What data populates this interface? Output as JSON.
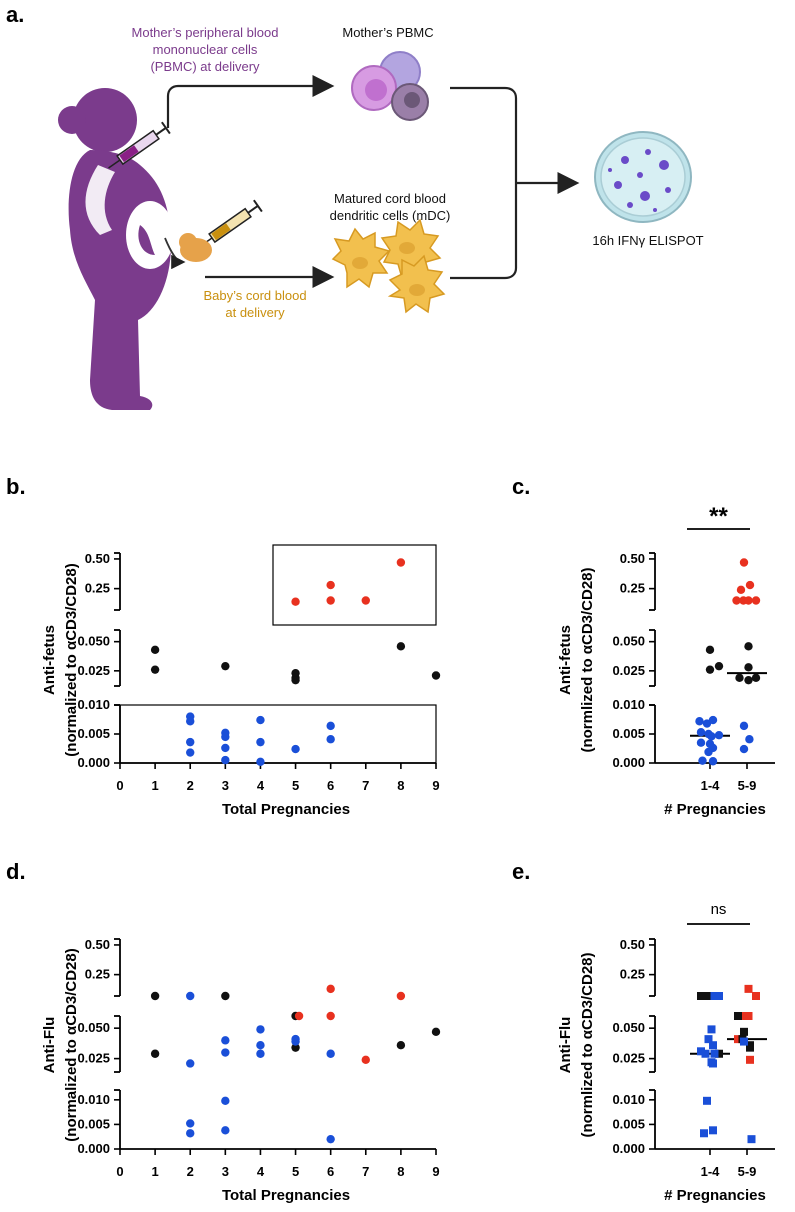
{
  "colors": {
    "purple": "#7b3b8c",
    "gold": "#d4a017",
    "black": "#111111",
    "blue": "#1a4fd8",
    "red": "#e8311f",
    "dc": "#f2c04e",
    "dish": "#bfe3ea"
  },
  "panels": {
    "a": "a.",
    "b": "b.",
    "c": "c.",
    "d": "d.",
    "e": "e."
  },
  "diagram": {
    "mother_label_1": "Mother’s peripheral blood",
    "mother_label_2": "mononuclear cells",
    "mother_label_3": "(PBMC) at delivery",
    "pbmc_label": "Mother’s PBMC",
    "mdc_label_1": "Matured cord blood",
    "mdc_label_2": "dendritic cells (mDC)",
    "baby_label_1": "Baby’s cord blood",
    "baby_label_2": "at delivery",
    "elispot_label": "16h IFNγ ELISPOT",
    "icons": [
      "pregnant-woman-icon",
      "syringe-icon",
      "fetus-icon",
      "pbmc-cells-icon",
      "dendritic-cells-icon",
      "petri-dish-icon"
    ]
  },
  "chart_data": [
    {
      "id": "b",
      "type": "scatter",
      "xlabel": "Total Pregnancies",
      "ylabel_1": "Anti-fetus",
      "ylabel_2": "(normalized to αCD3/CD28)",
      "xlim": [
        0,
        9
      ],
      "x_ticks": [
        "0",
        "1",
        "2",
        "3",
        "4",
        "5",
        "6",
        "7",
        "8",
        "9"
      ],
      "y_axis_segments": [
        {
          "range": [
            0,
            0.01
          ],
          "ticks": [
            "0.000",
            "0.005",
            "0.010"
          ]
        },
        {
          "range": [
            0.012,
            0.06
          ],
          "ticks": [
            "0.025",
            "0.050"
          ]
        },
        {
          "range": [
            0.07,
            0.55
          ],
          "ticks": [
            "0.25",
            "0.50"
          ]
        }
      ],
      "series": [
        {
          "name": "black",
          "color": "black",
          "points": [
            [
              1,
              0.043
            ],
            [
              1,
              0.026
            ],
            [
              3,
              0.029
            ],
            [
              5,
              0.023
            ],
            [
              5,
              0.019
            ],
            [
              5,
              0.017
            ],
            [
              8,
              0.046
            ],
            [
              9,
              0.021
            ]
          ]
        },
        {
          "name": "blue",
          "color": "blue",
          "points": [
            [
              2,
              0.008
            ],
            [
              2,
              0.0072
            ],
            [
              2,
              0.0036
            ],
            [
              2,
              0.0018
            ],
            [
              3,
              0.0052
            ],
            [
              3,
              0.0045
            ],
            [
              3,
              0.0026
            ],
            [
              3,
              0.0005
            ],
            [
              4,
              0.0074
            ],
            [
              4,
              0.0036
            ],
            [
              4,
              0.0002
            ],
            [
              5,
              0.0024
            ],
            [
              6,
              0.0064
            ],
            [
              6,
              0.0041
            ]
          ]
        },
        {
          "name": "red",
          "color": "red",
          "points": [
            [
              5,
              0.14
            ],
            [
              6,
              0.28
            ],
            [
              6,
              0.15
            ],
            [
              7,
              0.15
            ],
            [
              8,
              0.47
            ]
          ]
        }
      ]
    },
    {
      "id": "c",
      "type": "scatter",
      "xlabel": "# Pregnancies",
      "ylabel_1": "Anti-fetus",
      "ylabel_2": "(normlized to αCD3/CD28)",
      "categories": [
        "1-4",
        "5-9"
      ],
      "significance": "**",
      "y_axis_segments": [
        {
          "range": [
            0,
            0.01
          ],
          "ticks": [
            "0.000",
            "0.005",
            "0.010"
          ]
        },
        {
          "range": [
            0.012,
            0.06
          ],
          "ticks": [
            "0.025",
            "0.050"
          ]
        },
        {
          "range": [
            0.07,
            0.55
          ],
          "ticks": [
            "0.25",
            "0.50"
          ]
        }
      ],
      "medians": [
        0.0047,
        0.023
      ],
      "series": [
        {
          "name": "group 1-4 black",
          "color": "black",
          "points": [
            [
              0,
              0.043
            ],
            [
              0,
              0.026
            ],
            [
              0.3,
              0.029
            ]
          ]
        },
        {
          "name": "group 1-4 blue",
          "color": "blue",
          "points": [
            [
              -0.35,
              0.0072
            ],
            [
              -0.1,
              0.0068
            ],
            [
              0.1,
              0.0074
            ],
            [
              -0.3,
              0.0053
            ],
            [
              -0.05,
              0.005
            ],
            [
              0.05,
              0.0046
            ],
            [
              0.3,
              0.0048
            ],
            [
              -0.3,
              0.0035
            ],
            [
              0.0,
              0.0033
            ],
            [
              0.1,
              0.0026
            ],
            [
              -0.05,
              0.0019
            ],
            [
              -0.25,
              0.0004
            ],
            [
              0.1,
              0.0003
            ]
          ]
        },
        {
          "name": "group 5-9 red",
          "color": "red",
          "points": [
            [
              -0.1,
              0.47
            ],
            [
              -0.2,
              0.24
            ],
            [
              0.1,
              0.28
            ],
            [
              -0.35,
              0.15
            ],
            [
              -0.12,
              0.15
            ],
            [
              0.05,
              0.15
            ],
            [
              0.3,
              0.15
            ]
          ]
        },
        {
          "name": "group 5-9 black",
          "color": "black",
          "points": [
            [
              0.05,
              0.046
            ],
            [
              0.05,
              0.028
            ],
            [
              -0.25,
              0.019
            ],
            [
              0.05,
              0.017
            ],
            [
              0.3,
              0.019
            ]
          ]
        },
        {
          "name": "group 5-9 blue",
          "color": "blue",
          "points": [
            [
              -0.1,
              0.0064
            ],
            [
              0.08,
              0.0041
            ],
            [
              -0.1,
              0.0024
            ]
          ]
        }
      ]
    },
    {
      "id": "d",
      "type": "scatter",
      "xlabel": "Total Pregnancies",
      "ylabel_1": "Anti-Flu",
      "ylabel_2": "(normalized to αCD3/CD28)",
      "xlim": [
        0,
        9
      ],
      "x_ticks": [
        "0",
        "1",
        "2",
        "3",
        "4",
        "5",
        "6",
        "7",
        "8",
        "9"
      ],
      "y_axis_segments": [
        {
          "range": [
            0,
            0.012
          ],
          "ticks": [
            "0.000",
            "0.005",
            "0.010"
          ]
        },
        {
          "range": [
            0.014,
            0.06
          ],
          "ticks": [
            "0.025",
            "0.050"
          ]
        },
        {
          "range": [
            0.07,
            0.55
          ],
          "ticks": [
            "0.25",
            "0.50"
          ]
        }
      ],
      "series": [
        {
          "name": "black",
          "color": "black",
          "points": [
            [
              1,
              0.061
            ],
            [
              1,
              0.029
            ],
            [
              3,
              0.061
            ],
            [
              5,
              0.06
            ],
            [
              5,
              0.034
            ],
            [
              8,
              0.036
            ],
            [
              9,
              0.047
            ]
          ]
        },
        {
          "name": "blue",
          "color": "blue",
          "points": [
            [
              2,
              0.065
            ],
            [
              2,
              0.021
            ],
            [
              2,
              0.0052
            ],
            [
              2,
              0.0032
            ],
            [
              3,
              0.04
            ],
            [
              3,
              0.03
            ],
            [
              3,
              0.0098
            ],
            [
              3,
              0.0038
            ],
            [
              4,
              0.049
            ],
            [
              4,
              0.036
            ],
            [
              4,
              0.029
            ],
            [
              5,
              0.041
            ],
            [
              5,
              0.039
            ],
            [
              6,
              0.029
            ],
            [
              6,
              0.002
            ]
          ]
        },
        {
          "name": "red",
          "color": "red",
          "points": [
            [
              5.1,
              0.06
            ],
            [
              6,
              0.13
            ],
            [
              6,
              0.06
            ],
            [
              7,
              0.024
            ],
            [
              8,
              0.061
            ]
          ]
        }
      ]
    },
    {
      "id": "e",
      "type": "scatter",
      "xlabel": "# Pregnancies",
      "ylabel_1": "Anti-Flu",
      "ylabel_2": "(normlized to αCD3/CD28)",
      "categories": [
        "1-4",
        "5-9"
      ],
      "significance": "ns",
      "y_axis_segments": [
        {
          "range": [
            0,
            0.012
          ],
          "ticks": [
            "0.000",
            "0.005",
            "0.010"
          ]
        },
        {
          "range": [
            0.014,
            0.06
          ],
          "ticks": [
            "0.025",
            "0.050"
          ]
        },
        {
          "range": [
            0.07,
            0.55
          ],
          "ticks": [
            "0.25",
            "0.50"
          ]
        }
      ],
      "medians": [
        0.029,
        0.041
      ],
      "series": [
        {
          "name": "group 1-4 black",
          "color": "black",
          "points": [
            [
              -0.3,
              0.061
            ],
            [
              -0.05,
              0.061
            ],
            [
              0.3,
              0.029
            ]
          ]
        },
        {
          "name": "group 1-4 blue",
          "color": "blue",
          "points": [
            [
              0.15,
              0.061
            ],
            [
              0.3,
              0.065
            ],
            [
              0.05,
              0.049
            ],
            [
              -0.05,
              0.041
            ],
            [
              0.1,
              0.036
            ],
            [
              -0.3,
              0.031
            ],
            [
              0.15,
              0.029
            ],
            [
              -0.15,
              0.029
            ],
            [
              0.05,
              0.022
            ],
            [
              0.1,
              0.021
            ],
            [
              -0.1,
              0.0098
            ],
            [
              0.1,
              0.0038
            ],
            [
              -0.2,
              0.0032
            ]
          ]
        },
        {
          "name": "group 5-9 red",
          "color": "red",
          "points": [
            [
              0.05,
              0.13
            ],
            [
              -0.15,
              0.06
            ],
            [
              0.05,
              0.06
            ],
            [
              0.3,
              0.061
            ],
            [
              -0.3,
              0.041
            ],
            [
              0.1,
              0.024
            ]
          ]
        },
        {
          "name": "group 5-9 black",
          "color": "black",
          "points": [
            [
              -0.3,
              0.06
            ],
            [
              -0.1,
              0.047
            ],
            [
              0.1,
              0.036
            ],
            [
              0.1,
              0.034
            ],
            [
              -0.15,
              0.041
            ]
          ]
        },
        {
          "name": "group 5-9 blue",
          "color": "blue",
          "points": [
            [
              -0.1,
              0.039
            ],
            [
              0.15,
              0.002
            ]
          ]
        }
      ]
    }
  ]
}
